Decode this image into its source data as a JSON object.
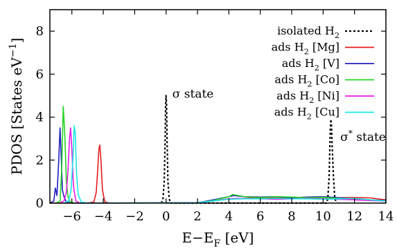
{
  "chart_data": {
    "type": "line",
    "xlabel": "E−E_F [eV]",
    "ylabel": "PDOS [States eV^−1]",
    "xlim": [
      -7.4,
      14
    ],
    "ylim": [
      0,
      9
    ],
    "xticks": [
      -6,
      -4,
      -2,
      0,
      2,
      4,
      6,
      8,
      10,
      12,
      14
    ],
    "xtick_labels": [
      "−6",
      "−4",
      "−2",
      "0",
      "2",
      "4",
      "6",
      "8",
      "10",
      "12",
      "14"
    ],
    "yticks": [
      0,
      2,
      4,
      6,
      8
    ],
    "ytick_labels": [
      "0",
      "2",
      "4",
      "6",
      "8"
    ],
    "legend_position": "top-right",
    "grid": false,
    "annotations": [
      {
        "text": "σ state",
        "x": 0.4,
        "y": 4.9
      },
      {
        "text": "σ* state",
        "x": 11.1,
        "y": 2.9
      }
    ],
    "series": [
      {
        "name": "isolated H2",
        "color": "#000000",
        "dash": "dashed",
        "x": [
          -0.3,
          -0.2,
          -0.12,
          -0.06,
          -0.03,
          0.0,
          0.03,
          0.06,
          0.12,
          0.2,
          0.3,
          10.2,
          10.3,
          10.38,
          10.43,
          10.46,
          10.5,
          10.54,
          10.58,
          10.66,
          10.75,
          10.9
        ],
        "y": [
          0,
          0.2,
          1.0,
          3.0,
          4.6,
          5.0,
          4.6,
          3.0,
          1.0,
          0.2,
          0,
          0,
          0.2,
          1.2,
          2.6,
          3.5,
          3.9,
          3.5,
          2.6,
          1.2,
          0.2,
          0
        ]
      },
      {
        "name": "ads H2 [Mg]",
        "color": "#e41a1c",
        "x": [
          -7.4,
          -5.0,
          -4.6,
          -4.45,
          -4.35,
          -4.28,
          -4.22,
          -4.15,
          -4.05,
          -3.9,
          -3.6,
          2.0,
          3.0,
          4.0,
          5.0,
          6.0,
          7.0,
          8.0,
          9.0,
          10.0,
          11.0,
          12.0,
          13.0,
          14.0
        ],
        "y": [
          0,
          0,
          0.05,
          0.5,
          1.6,
          2.5,
          2.7,
          2.0,
          0.6,
          0.05,
          0,
          0.02,
          0.1,
          0.2,
          0.22,
          0.25,
          0.24,
          0.26,
          0.25,
          0.2,
          0.25,
          0.26,
          0.24,
          0.15
        ]
      },
      {
        "name": "ads H2 [V]",
        "color": "#1f1fbf",
        "x": [
          -7.4,
          -7.15,
          -7.05,
          -6.95,
          -6.85,
          -6.75,
          -6.68,
          -6.6,
          -6.5,
          -6.35,
          -6.0,
          2.0,
          3.0,
          4.0,
          4.3,
          5.0,
          6.0,
          7.0,
          8.0,
          9.0,
          10.0,
          11.0,
          12.0,
          13.0,
          14.0
        ],
        "y": [
          0,
          0.1,
          0.7,
          0.35,
          1.8,
          3.5,
          2.2,
          0.6,
          0.3,
          0.05,
          0,
          0.02,
          0.15,
          0.3,
          0.35,
          0.3,
          0.28,
          0.3,
          0.25,
          0.28,
          0.3,
          0.25,
          0.2,
          0.15,
          0.12
        ]
      },
      {
        "name": "ads H2 [Co]",
        "color": "#22d422",
        "x": [
          -7.0,
          -6.75,
          -6.65,
          -6.55,
          -6.45,
          -6.35,
          -6.25,
          -6.1,
          -5.8,
          2.0,
          3.0,
          4.0,
          4.25,
          5.0,
          6.0,
          7.0,
          8.0,
          9.0,
          10.0,
          11.0,
          12.0,
          13.0,
          14.0
        ],
        "y": [
          0,
          0.1,
          1.5,
          4.5,
          3.2,
          1.0,
          0.3,
          0.05,
          0,
          0.02,
          0.12,
          0.3,
          0.4,
          0.3,
          0.25,
          0.3,
          0.28,
          0.25,
          0.27,
          0.22,
          0.2,
          0.15,
          0.1
        ]
      },
      {
        "name": "ads H2 [Ni]",
        "color": "#e619e6",
        "x": [
          -6.8,
          -6.5,
          -6.35,
          -6.25,
          -6.15,
          -6.08,
          -6.0,
          -5.9,
          -5.75,
          -5.5,
          2.0,
          3.0,
          4.0,
          5.0,
          6.0,
          7.0,
          8.0,
          9.0,
          10.0,
          11.0,
          12.0,
          13.0,
          14.0
        ],
        "y": [
          0,
          0.1,
          0.5,
          1.5,
          3.0,
          3.5,
          2.5,
          0.8,
          0.1,
          0,
          0.02,
          0.1,
          0.2,
          0.22,
          0.2,
          0.18,
          0.2,
          0.22,
          0.2,
          0.18,
          0.15,
          0.12,
          0.1
        ]
      },
      {
        "name": "ads H2 [Cu]",
        "color": "#19e6e6",
        "x": [
          -6.5,
          -6.2,
          -6.05,
          -5.92,
          -5.85,
          -5.78,
          -5.7,
          -5.6,
          -5.4,
          -5.0,
          2.0,
          3.0,
          4.0,
          5.0,
          6.0,
          7.0,
          8.0,
          9.0,
          10.0,
          11.0,
          12.0,
          13.0,
          14.0
        ],
        "y": [
          0,
          0.1,
          0.6,
          2.2,
          3.6,
          3.2,
          1.4,
          0.4,
          0.05,
          0,
          0.02,
          0.1,
          0.18,
          0.2,
          0.2,
          0.22,
          0.2,
          0.2,
          0.18,
          0.2,
          0.22,
          0.15,
          0.1
        ]
      }
    ]
  }
}
